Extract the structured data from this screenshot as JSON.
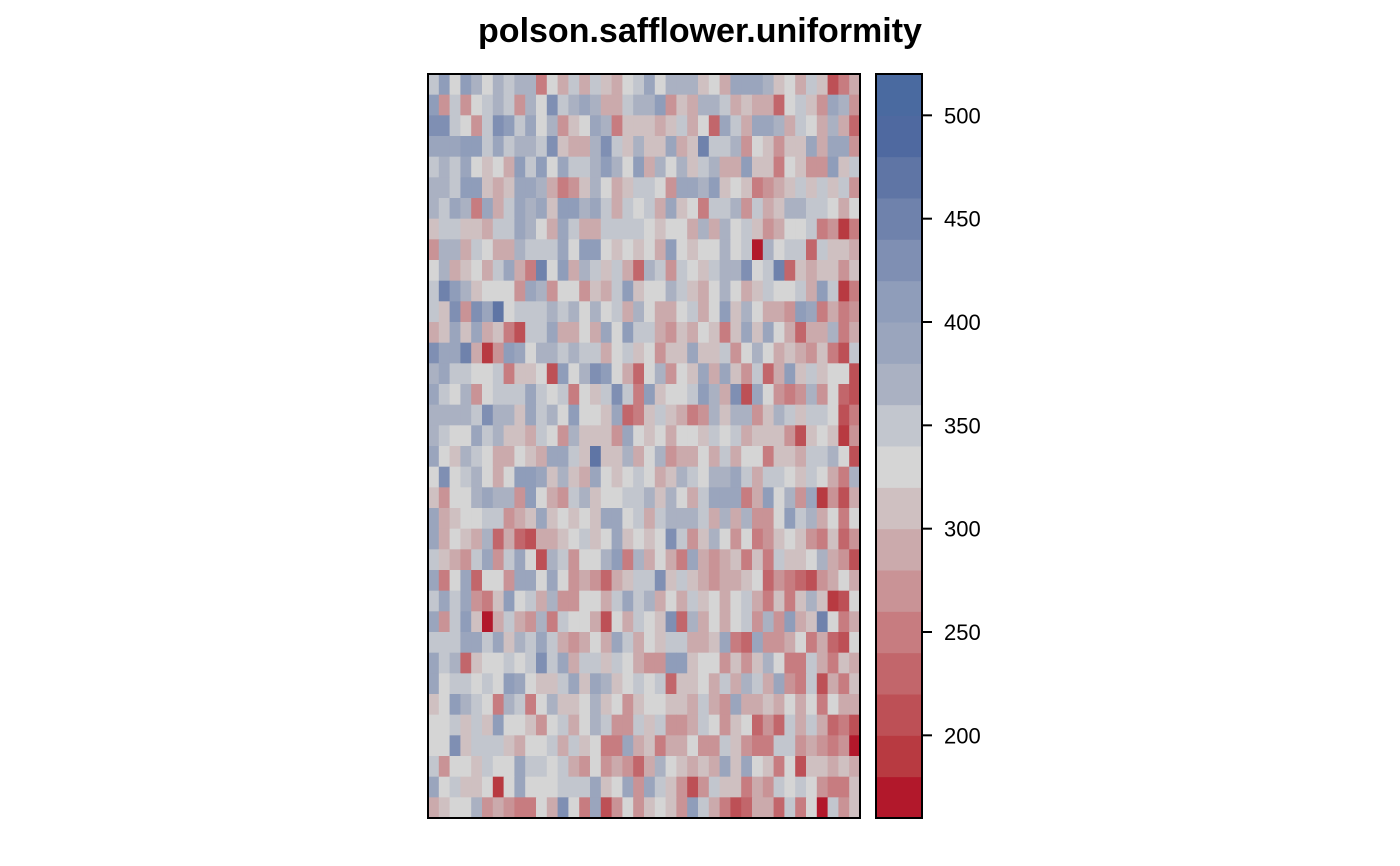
{
  "chart_data": {
    "type": "heatmap",
    "title": "polson.safflower.uniformity",
    "rows": 36,
    "cols": 40,
    "value_range": [
      160,
      520
    ],
    "colorbar": {
      "breaks": [
        160,
        180,
        200,
        220,
        240,
        260,
        280,
        300,
        320,
        340,
        360,
        380,
        400,
        420,
        440,
        460,
        480,
        500,
        520
      ],
      "colors": [
        "#b2182b",
        "#b83a41",
        "#bd5056",
        "#c2666b",
        "#c77c80",
        "#c99396",
        "#cbaaac",
        "#cfc0c1",
        "#d5d5d5",
        "#c2c6ce",
        "#aab1c2",
        "#9aa5bd",
        "#8f9dba",
        "#7f8fb3",
        "#6f82ac",
        "#5f75a5",
        "#4f69a0",
        "#4a6aa0"
      ],
      "tick_values": [
        200,
        250,
        300,
        350,
        400,
        450,
        500
      ],
      "tick_labels": [
        "200",
        "250",
        "300",
        "350",
        "400",
        "450",
        "500"
      ]
    },
    "grid": false,
    "legend": "right"
  }
}
